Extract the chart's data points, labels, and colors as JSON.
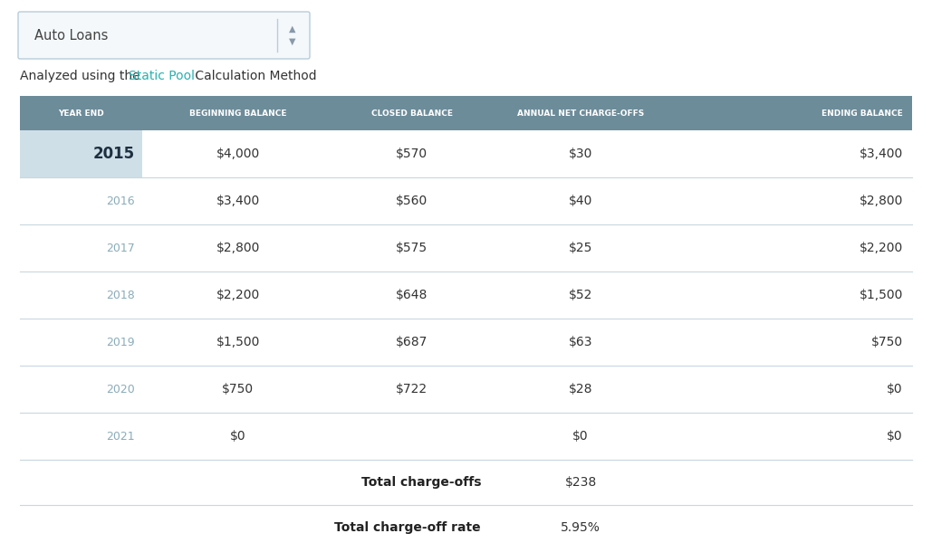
{
  "dropdown_label": "Auto Loans",
  "subtitle_parts": [
    "Analyzed using the ",
    "Static Pool",
    " Calculation Method"
  ],
  "subtitle_colors": [
    "#333333",
    "#2ab0b0",
    "#333333"
  ],
  "header_cols": [
    "YEAR END",
    "BEGINNING BALANCE",
    "CLOSED BALANCE",
    "ANNUAL NET CHARGE-OFFS",
    "ENDING BALANCE"
  ],
  "header_bg": "#6d8c9a",
  "header_text_color": "#ffffff",
  "rows": [
    {
      "year": "2015",
      "beg": "$4,000",
      "closed": "$570",
      "chargeoffs": "$30",
      "ending": "$3,400",
      "highlight": true
    },
    {
      "year": "2016",
      "beg": "$3,400",
      "closed": "$560",
      "chargeoffs": "$40",
      "ending": "$2,800",
      "highlight": false
    },
    {
      "year": "2017",
      "beg": "$2,800",
      "closed": "$575",
      "chargeoffs": "$25",
      "ending": "$2,200",
      "highlight": false
    },
    {
      "year": "2018",
      "beg": "$2,200",
      "closed": "$648",
      "chargeoffs": "$52",
      "ending": "$1,500",
      "highlight": false
    },
    {
      "year": "2019",
      "beg": "$1,500",
      "closed": "$687",
      "chargeoffs": "$63",
      "ending": "$750",
      "highlight": false
    },
    {
      "year": "2020",
      "beg": "$750",
      "closed": "$722",
      "chargeoffs": "$28",
      "ending": "$0",
      "highlight": false
    },
    {
      "year": "2021",
      "beg": "$0",
      "closed": "",
      "chargeoffs": "$0",
      "ending": "$0",
      "highlight": false
    }
  ],
  "summary_rows": [
    {
      "label": "Total charge-offs",
      "value": "$238"
    },
    {
      "label": "Total charge-off rate",
      "value": "5.95%"
    }
  ],
  "highlight_bg": "#cfdfe8",
  "divider_color": "#c8d8e0",
  "year_color_normal": "#8aacba",
  "year_color_highlight": "#1c3040",
  "data_color": "#333333",
  "bg_color": "#ffffff",
  "dropdown_border": "#b8ccda",
  "dropdown_bg": "#f4f8fb"
}
